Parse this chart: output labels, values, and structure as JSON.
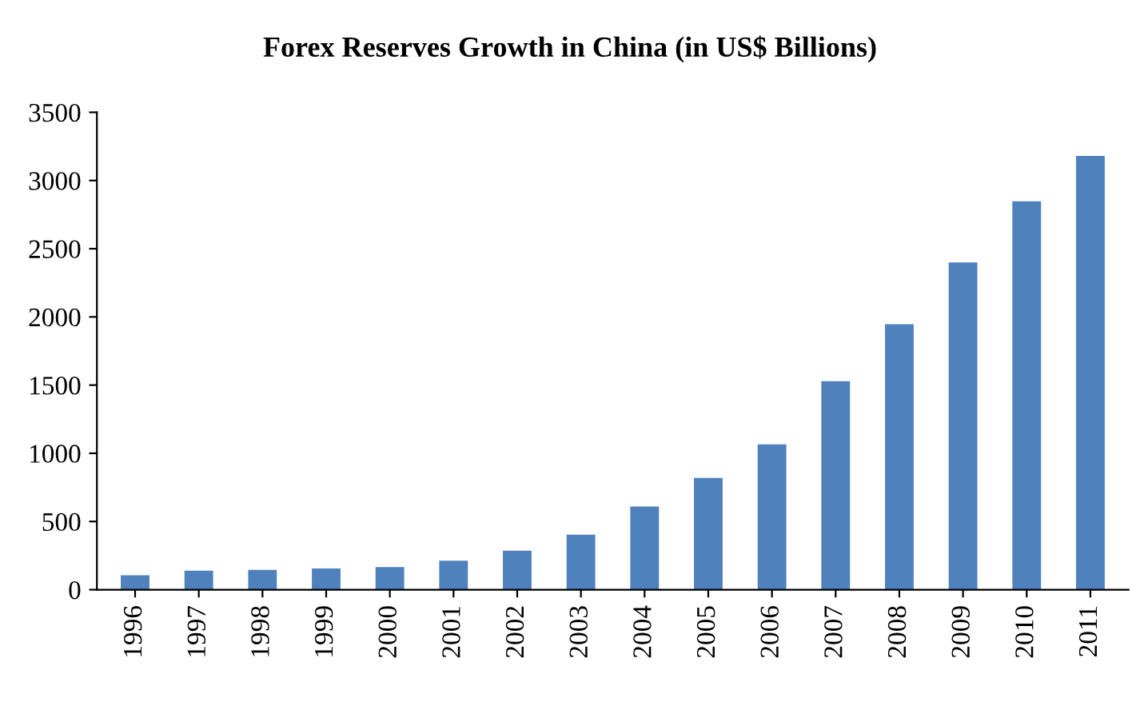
{
  "chart_data": {
    "type": "bar",
    "title": "Forex Reserves Growth in China (in US$ Billions)",
    "categories": [
      "1996",
      "1997",
      "1998",
      "1999",
      "2000",
      "2001",
      "2002",
      "2003",
      "2004",
      "2005",
      "2006",
      "2007",
      "2008",
      "2009",
      "2010",
      "2011"
    ],
    "values": [
      105,
      140,
      145,
      155,
      166,
      212,
      286,
      403,
      610,
      819,
      1066,
      1528,
      1946,
      2399,
      2847,
      3181
    ],
    "color": "#4f81bd",
    "ylim": [
      0,
      3500
    ],
    "yticks": [
      0,
      500,
      1000,
      1500,
      2000,
      2500,
      3000,
      3500
    ],
    "grid": false,
    "legend": false
  }
}
